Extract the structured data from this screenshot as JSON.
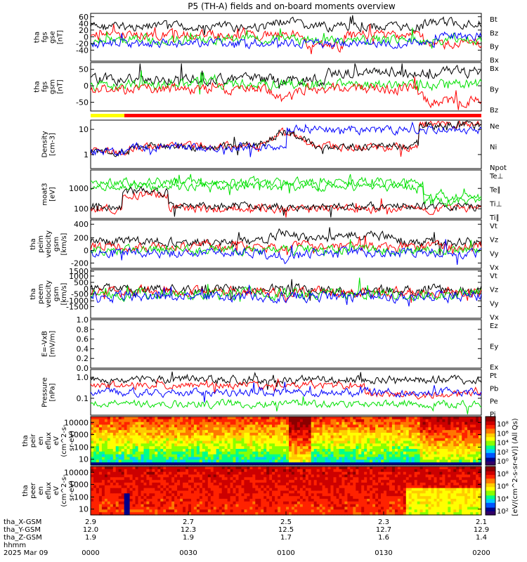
{
  "title": "P5 (TH-A) fields and on-board moments overview",
  "colors": {
    "black": "#000000",
    "red": "#ff0000",
    "green": "#00e000",
    "blue": "#0000ff",
    "yellow": "#ffff00"
  },
  "chart_data": [
    {
      "type": "line",
      "panel": "fgs_gse",
      "ylabel": [
        "tha",
        "fgs",
        "gse",
        "[nT]"
      ],
      "ylim": [
        -50,
        75
      ],
      "yticks": [
        "60",
        "40",
        "20",
        "0",
        "-20",
        "-40"
      ],
      "series": [
        {
          "name": "Bt",
          "color": "black"
        },
        {
          "name": "Bz",
          "color": "red"
        },
        {
          "name": "By",
          "color": "green"
        },
        {
          "name": "Bx",
          "color": "blue"
        }
      ]
    },
    {
      "type": "line",
      "panel": "fgs_gsm",
      "ylabel": [
        "tha",
        "fgs",
        "gsm",
        "[nT]"
      ],
      "ylim": [
        -75,
        75
      ],
      "yticks": [
        "50",
        "0",
        "-50"
      ],
      "series": [
        {
          "name": "Bx",
          "color": "black"
        },
        {
          "name": "By",
          "color": "green"
        },
        {
          "name": "Bz",
          "color": "red"
        }
      ]
    },
    {
      "type": "line",
      "panel": "density",
      "ylabel": [
        "Density",
        "[cm-3]"
      ],
      "scale": "log",
      "ylim": [
        0.3,
        20
      ],
      "yticks": [
        "10",
        "1"
      ],
      "series": [
        {
          "name": "Ne",
          "color": "red"
        },
        {
          "name": "Ni",
          "color": "black"
        },
        {
          "name": "Npot",
          "color": "blue"
        }
      ]
    },
    {
      "type": "line",
      "panel": "temperature",
      "ylabel": [
        "moat3",
        "[eV]"
      ],
      "scale": "log",
      "ylim": [
        40,
        3000
      ],
      "yticks": [
        "1000",
        "100"
      ],
      "series": [
        {
          "name": "Te⊥",
          "color": "red"
        },
        {
          "name": "Te∥",
          "color": "black"
        },
        {
          "name": "Ti⊥",
          "color": "green"
        },
        {
          "name": "Ti∥",
          "color": "green"
        }
      ]
    },
    {
      "type": "line",
      "panel": "peim_velocity",
      "ylabel": [
        "tha",
        "peim",
        "velocity",
        "gsm",
        "[km/s]"
      ],
      "ylim": [
        -200,
        450
      ],
      "yticks": [
        "400",
        "200",
        "0",
        "-200"
      ],
      "series": [
        {
          "name": "Vt",
          "color": "black"
        },
        {
          "name": "Vz",
          "color": "red"
        },
        {
          "name": "Vy",
          "color": "green"
        },
        {
          "name": "Vx",
          "color": "blue"
        }
      ]
    },
    {
      "type": "line",
      "panel": "peem_velocity",
      "ylabel": [
        "tha",
        "peem",
        "velocity",
        "gsm",
        "[km/s]"
      ],
      "ylim": [
        -1500,
        1500
      ],
      "yticks": [
        "1500",
        "1000",
        "500",
        "0",
        "-500",
        "-1000",
        "-1500"
      ],
      "series": [
        {
          "name": "Vt",
          "color": "black"
        },
        {
          "name": "Vz",
          "color": "red"
        },
        {
          "name": "Vy",
          "color": "green"
        },
        {
          "name": "Vx",
          "color": "blue"
        }
      ]
    },
    {
      "type": "line",
      "panel": "efield",
      "ylabel": [
        "E=-VxB",
        "[mV/m]"
      ],
      "ylim": [
        0,
        1
      ],
      "yticks": [
        "1.0",
        "0.8",
        "0.6",
        "0.4",
        "0.2",
        "0.0"
      ],
      "series": [
        {
          "name": "Ez",
          "color": "red"
        },
        {
          "name": "Ey",
          "color": "green"
        },
        {
          "name": "Ex",
          "color": "blue"
        }
      ]
    },
    {
      "type": "line",
      "panel": "pressure",
      "ylabel": [
        "Pressure",
        "[nPa]"
      ],
      "scale": "log",
      "ylim": [
        0.03,
        1.5
      ],
      "yticks": [
        "1.0",
        "0.1"
      ],
      "series": [
        {
          "name": "Pt",
          "color": "black"
        },
        {
          "name": "Pb",
          "color": "red"
        },
        {
          "name": "Pe",
          "color": "green"
        },
        {
          "name": "Pi",
          "color": "blue"
        }
      ]
    },
    {
      "type": "heatmap",
      "panel": "peir_spectrogram",
      "ylabel": [
        "tha",
        "peir",
        "en",
        "eflux",
        "eV",
        "(cm^2-s-",
        "sr-eV)"
      ],
      "yticks": [
        "10000",
        "1000",
        "100",
        "10"
      ]
    },
    {
      "type": "heatmap",
      "panel": "peer_spectrogram",
      "ylabel": [
        "tha",
        "peer",
        "en",
        "eflux",
        "eV",
        "(cm^2-s-",
        "sr-eV)"
      ],
      "yticks": [
        "10000",
        "1000",
        "100",
        "10"
      ]
    }
  ],
  "colorbar": {
    "label": "[eV/(cm^2-s-sr-eV)] (All Qs)",
    "top_ticks": [
      "10⁸",
      "10⁶",
      "10⁴",
      "10²",
      "10⁰"
    ],
    "bottom_ticks": [
      "10⁸",
      "10⁶",
      "10⁴",
      "10²"
    ]
  },
  "x_axis": {
    "row_labels": [
      "tha_X-GSM",
      "tha_Y-GSM",
      "tha_Z-GSM",
      "hhmm",
      "2025 Mar 09"
    ],
    "ticks": [
      {
        "x": "2.9",
        "y": "12.0",
        "z": "1.9",
        "t": "0000"
      },
      {
        "x": "2.7",
        "y": "12.3",
        "z": "1.9",
        "t": "0030"
      },
      {
        "x": "2.5",
        "y": "12.5",
        "z": "1.7",
        "t": "0100"
      },
      {
        "x": "2.3",
        "y": "12.7",
        "z": "1.6",
        "t": "0130"
      },
      {
        "x": "2.1",
        "y": "12.9",
        "z": "1.4",
        "t": "0200"
      }
    ]
  }
}
